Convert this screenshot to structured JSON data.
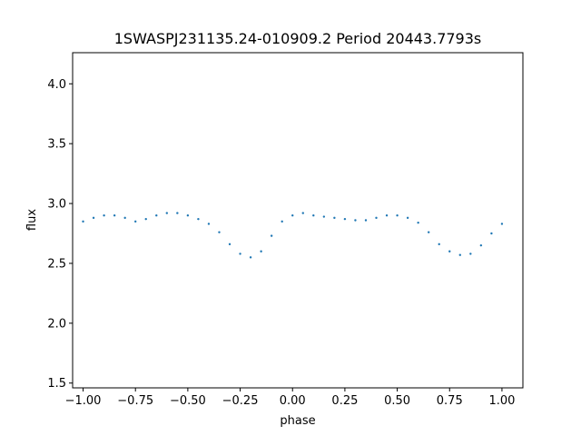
{
  "chart_data": {
    "type": "scatter",
    "title": "1SWASPJ231135.24-010909.2 Period 20443.7793s",
    "xlabel": "phase",
    "ylabel": "flux",
    "xlim": [
      -1.05,
      1.1
    ],
    "ylim": [
      1.46,
      4.26
    ],
    "grid": false,
    "marker_color": "#1f77b4",
    "x_ticks": [
      {
        "value": -1.0,
        "label": "−1.00"
      },
      {
        "value": -0.75,
        "label": "−0.75"
      },
      {
        "value": -0.5,
        "label": "−0.50"
      },
      {
        "value": -0.25,
        "label": "−0.25"
      },
      {
        "value": 0.0,
        "label": "0.00"
      },
      {
        "value": 0.25,
        "label": "0.25"
      },
      {
        "value": 0.5,
        "label": "0.50"
      },
      {
        "value": 0.75,
        "label": "0.75"
      },
      {
        "value": 1.0,
        "label": "1.00"
      }
    ],
    "y_ticks": [
      {
        "value": 1.5,
        "label": "1.5"
      },
      {
        "value": 2.0,
        "label": "2.0"
      },
      {
        "value": 2.5,
        "label": "2.5"
      },
      {
        "value": 3.0,
        "label": "3.0"
      },
      {
        "value": 3.5,
        "label": "3.5"
      },
      {
        "value": 4.0,
        "label": "4.0"
      }
    ],
    "series": [
      {
        "x": [
          -1.0,
          -0.95,
          -0.9,
          -0.85,
          -0.8,
          -0.75,
          -0.7,
          -0.65,
          -0.6,
          -0.55,
          -0.5,
          -0.45,
          -0.4,
          -0.35,
          -0.3,
          -0.25,
          -0.2,
          -0.15,
          -0.1,
          -0.05,
          0.0,
          0.05,
          0.1,
          0.15,
          0.2,
          0.25,
          0.3,
          0.35,
          0.4,
          0.45,
          0.5,
          0.55,
          0.6,
          0.65,
          0.7,
          0.75,
          0.8,
          0.85,
          0.9,
          0.95,
          1.0
        ],
        "y": [
          2.85,
          2.88,
          2.9,
          2.9,
          2.88,
          2.85,
          2.87,
          2.9,
          2.92,
          2.92,
          2.9,
          2.87,
          2.83,
          2.76,
          2.66,
          2.58,
          2.55,
          2.6,
          2.73,
          2.85,
          2.9,
          2.92,
          2.9,
          2.89,
          2.88,
          2.87,
          2.86,
          2.86,
          2.88,
          2.9,
          2.9,
          2.88,
          2.84,
          2.76,
          2.66,
          2.6,
          2.57,
          2.58,
          2.65,
          2.75,
          2.83
        ]
      }
    ]
  }
}
